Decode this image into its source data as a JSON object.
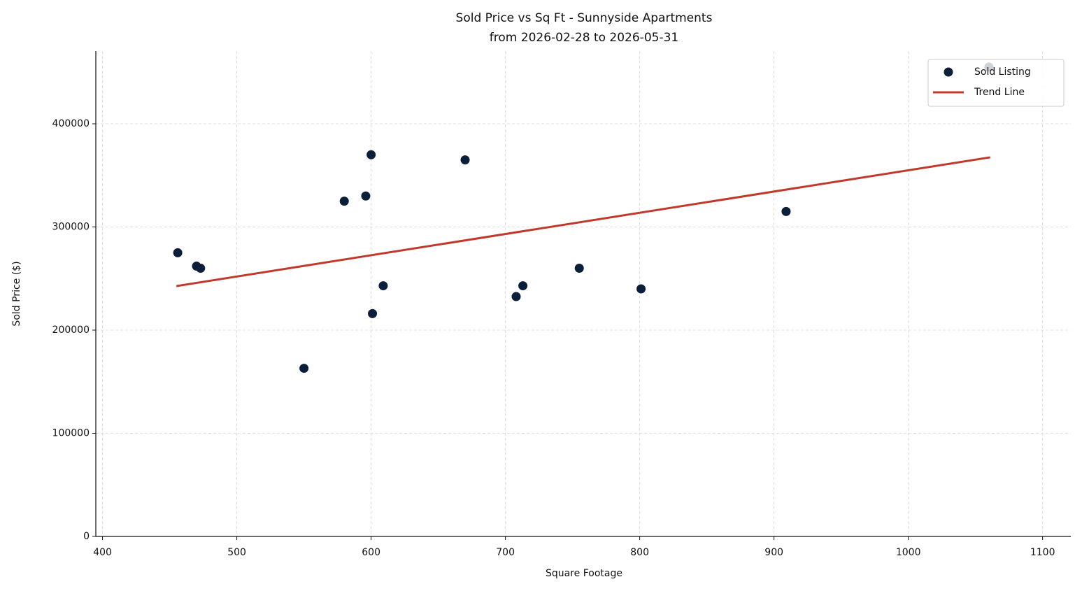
{
  "chart_data": {
    "type": "scatter",
    "title": "Sold Price vs Sq Ft - Sunnyside Apartments",
    "subtitle": "from 2026-02-28 to 2026-05-31",
    "x_label": "Square Footage",
    "y_label": "Sold Price ($)",
    "series": [
      {
        "name": "Sold Listing",
        "type": "scatter",
        "color": "#0b1f3a",
        "x": [
          456,
          470,
          473,
          550,
          580,
          596,
          600,
          601,
          609,
          670,
          708,
          713,
          755,
          801,
          909,
          1060
        ],
        "values": [
          275000,
          262000,
          260000,
          163000,
          325000,
          330000,
          370000,
          216000,
          243000,
          365000,
          232500,
          243000,
          260000,
          240000,
          315000,
          455000
        ]
      },
      {
        "name": "Trend Line",
        "type": "line",
        "color": "#c0392b",
        "x": [
          455,
          1061
        ],
        "values": [
          242700,
          367500
        ]
      }
    ],
    "xlim": [
      395,
      1121
    ],
    "ylim": [
      0,
      470500
    ],
    "xticks": [
      400,
      500,
      600,
      700,
      800,
      900,
      1000,
      1100
    ],
    "yticks": [
      0,
      100000,
      200000,
      300000,
      400000
    ],
    "grid": true,
    "legend": "upper right"
  }
}
